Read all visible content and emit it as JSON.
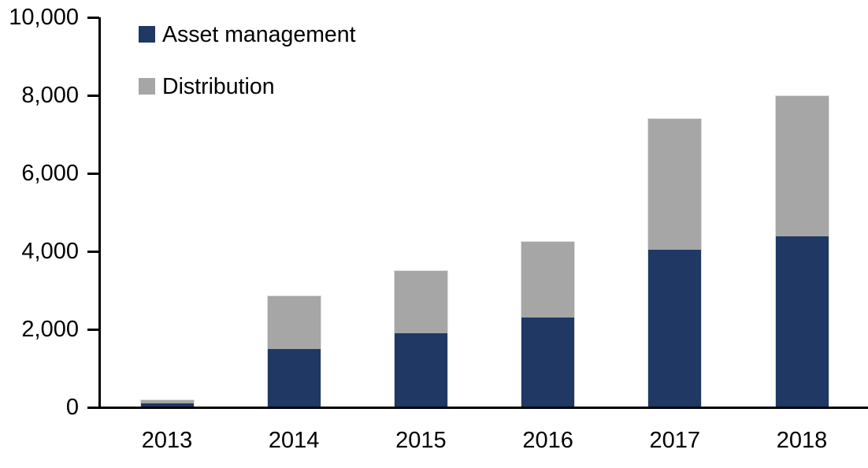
{
  "chart_data": {
    "type": "bar",
    "stacked": true,
    "title": "",
    "xlabel": "",
    "ylabel": "",
    "categories": [
      "2013",
      "2014",
      "2015",
      "2016",
      "2017",
      "2018"
    ],
    "series": [
      {
        "name": "Asset management",
        "color": "#1F3864",
        "values": [
          100,
          1500,
          1900,
          2300,
          4050,
          4400
        ]
      },
      {
        "name": "Distribution",
        "color": "#A6A6A6",
        "values": [
          75,
          1350,
          1600,
          1950,
          3350,
          3600
        ]
      }
    ],
    "totals": [
      175,
      2850,
      3500,
      4250,
      7400,
      8000
    ],
    "ylim": [
      0,
      10000
    ],
    "ytick_interval": 2000,
    "ytick_labels": [
      "0",
      "2,000",
      "4,000",
      "6,000",
      "8,000",
      "10,000"
    ],
    "legend_position": "top-left",
    "grid": false
  },
  "colors": {
    "background": "#FFFFFF",
    "axis": "#000000",
    "text": "#000000",
    "asset_management": "#1F3864",
    "distribution": "#A6A6A6"
  }
}
